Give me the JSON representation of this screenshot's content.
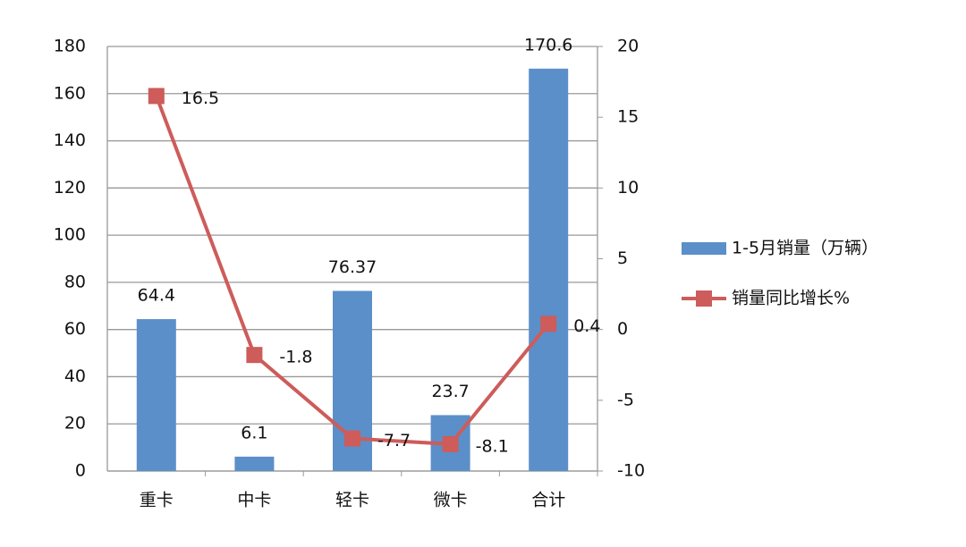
{
  "chart_data": {
    "type": "combo",
    "categories": [
      "重卡",
      "中卡",
      "轻卡",
      "微卡",
      "合计"
    ],
    "series": [
      {
        "name": "1-5月销量（万辆）",
        "type": "bar",
        "color": "#5b8fc9",
        "values": [
          64.4,
          6.1,
          76.37,
          23.7,
          170.6
        ]
      },
      {
        "name": "销量同比增长%",
        "type": "line",
        "axis": "y2",
        "color": "#cd5c5a",
        "values": [
          16.5,
          -1.8,
          -7.7,
          -8.1,
          0.4
        ]
      }
    ],
    "ylim": [
      0,
      180
    ],
    "yticks": [
      0,
      20,
      40,
      60,
      80,
      100,
      120,
      140,
      160,
      180
    ],
    "y2lim": [
      -10,
      20
    ],
    "y2ticks": [
      -10,
      -5,
      0,
      5,
      10,
      15,
      20
    ],
    "grid": true,
    "legend": "right"
  }
}
